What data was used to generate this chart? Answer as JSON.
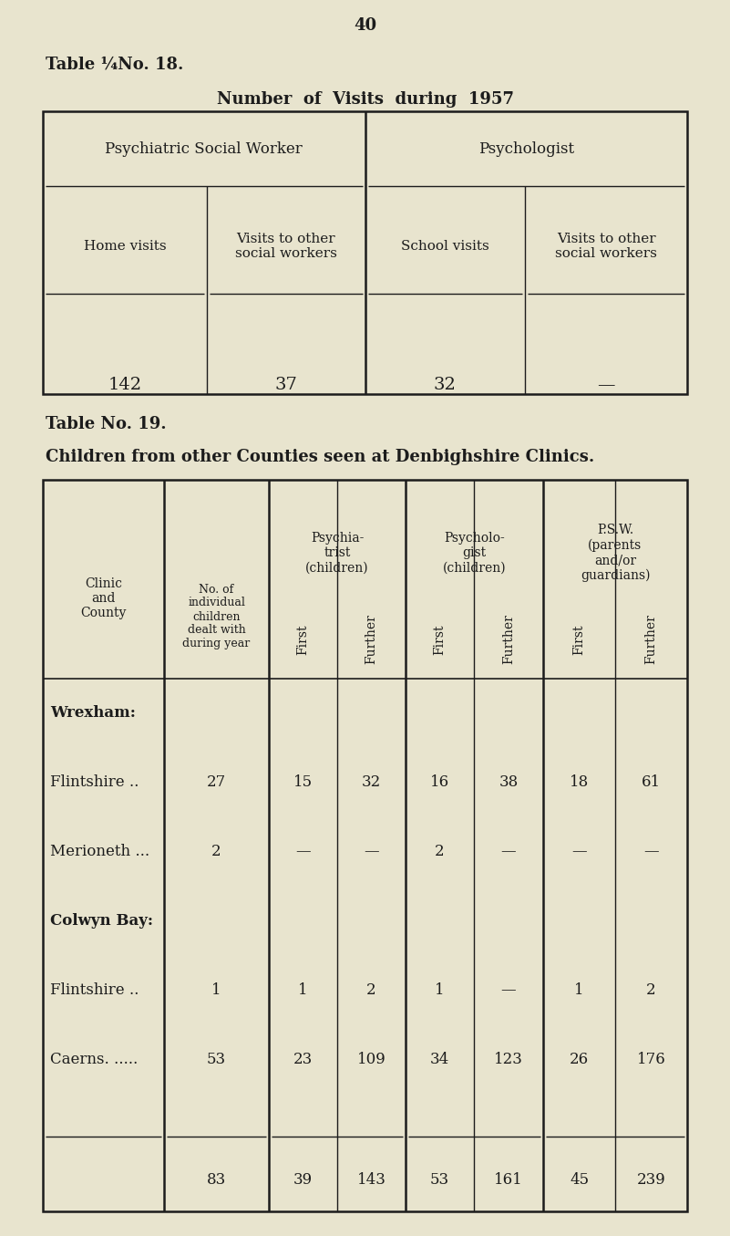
{
  "bg_color": "#e8e4ce",
  "page_number": "40",
  "table18": {
    "title": "Table ¼No. 18.",
    "subtitle": "Number  of  Visits  during  1957",
    "col_groups": [
      "Psychiatric Social Worker",
      "Psychologist"
    ],
    "col_headers": [
      "Home visits",
      "Visits to other\nsocial workers",
      "School visits",
      "Visits to other\nsocial workers"
    ],
    "values": [
      "142",
      "37",
      "32",
      "—"
    ]
  },
  "table19": {
    "title": "Table No. 19.",
    "subtitle": "Children from other Counties seen at Denbighshire Clinics.",
    "col1_header": "Clinic\nand\nCounty",
    "col2_header": "No. of\nindividual\nchildren\ndealt with\nduring year",
    "group_headers": [
      "Psychia-\ntrist\n(children)",
      "Psycholo-\ngist\n(children)",
      "P.S.W.\n(parents\nand/or\nguardians)"
    ],
    "sub_headers": [
      "First",
      "Further",
      "First",
      "Further",
      "First",
      "Further"
    ],
    "rows": [
      {
        "label": "Wrexham:",
        "bold": true,
        "vals": [
          "",
          "",
          "",
          "",
          "",
          "",
          ""
        ]
      },
      {
        "label": "Flintshire ..",
        "bold": false,
        "vals": [
          "27",
          "15",
          "32",
          "16",
          "38",
          "18",
          "61"
        ]
      },
      {
        "label": "Merioneth ...",
        "bold": false,
        "vals": [
          "2",
          "—",
          "—",
          "2",
          "—",
          "—",
          "—"
        ]
      },
      {
        "label": "Colwyn Bay:",
        "bold": true,
        "vals": [
          "",
          "",
          "",
          "",
          "",
          "",
          ""
        ]
      },
      {
        "label": "Flintshire ..",
        "bold": false,
        "vals": [
          "1",
          "1",
          "2",
          "1",
          "—",
          "1",
          "2"
        ]
      },
      {
        "label": "Caerns. .....",
        "bold": false,
        "vals": [
          "53",
          "23",
          "109",
          "34",
          "123",
          "26",
          "176"
        ]
      }
    ],
    "totals": [
      "83",
      "39",
      "143",
      "53",
      "161",
      "45",
      "239"
    ]
  }
}
